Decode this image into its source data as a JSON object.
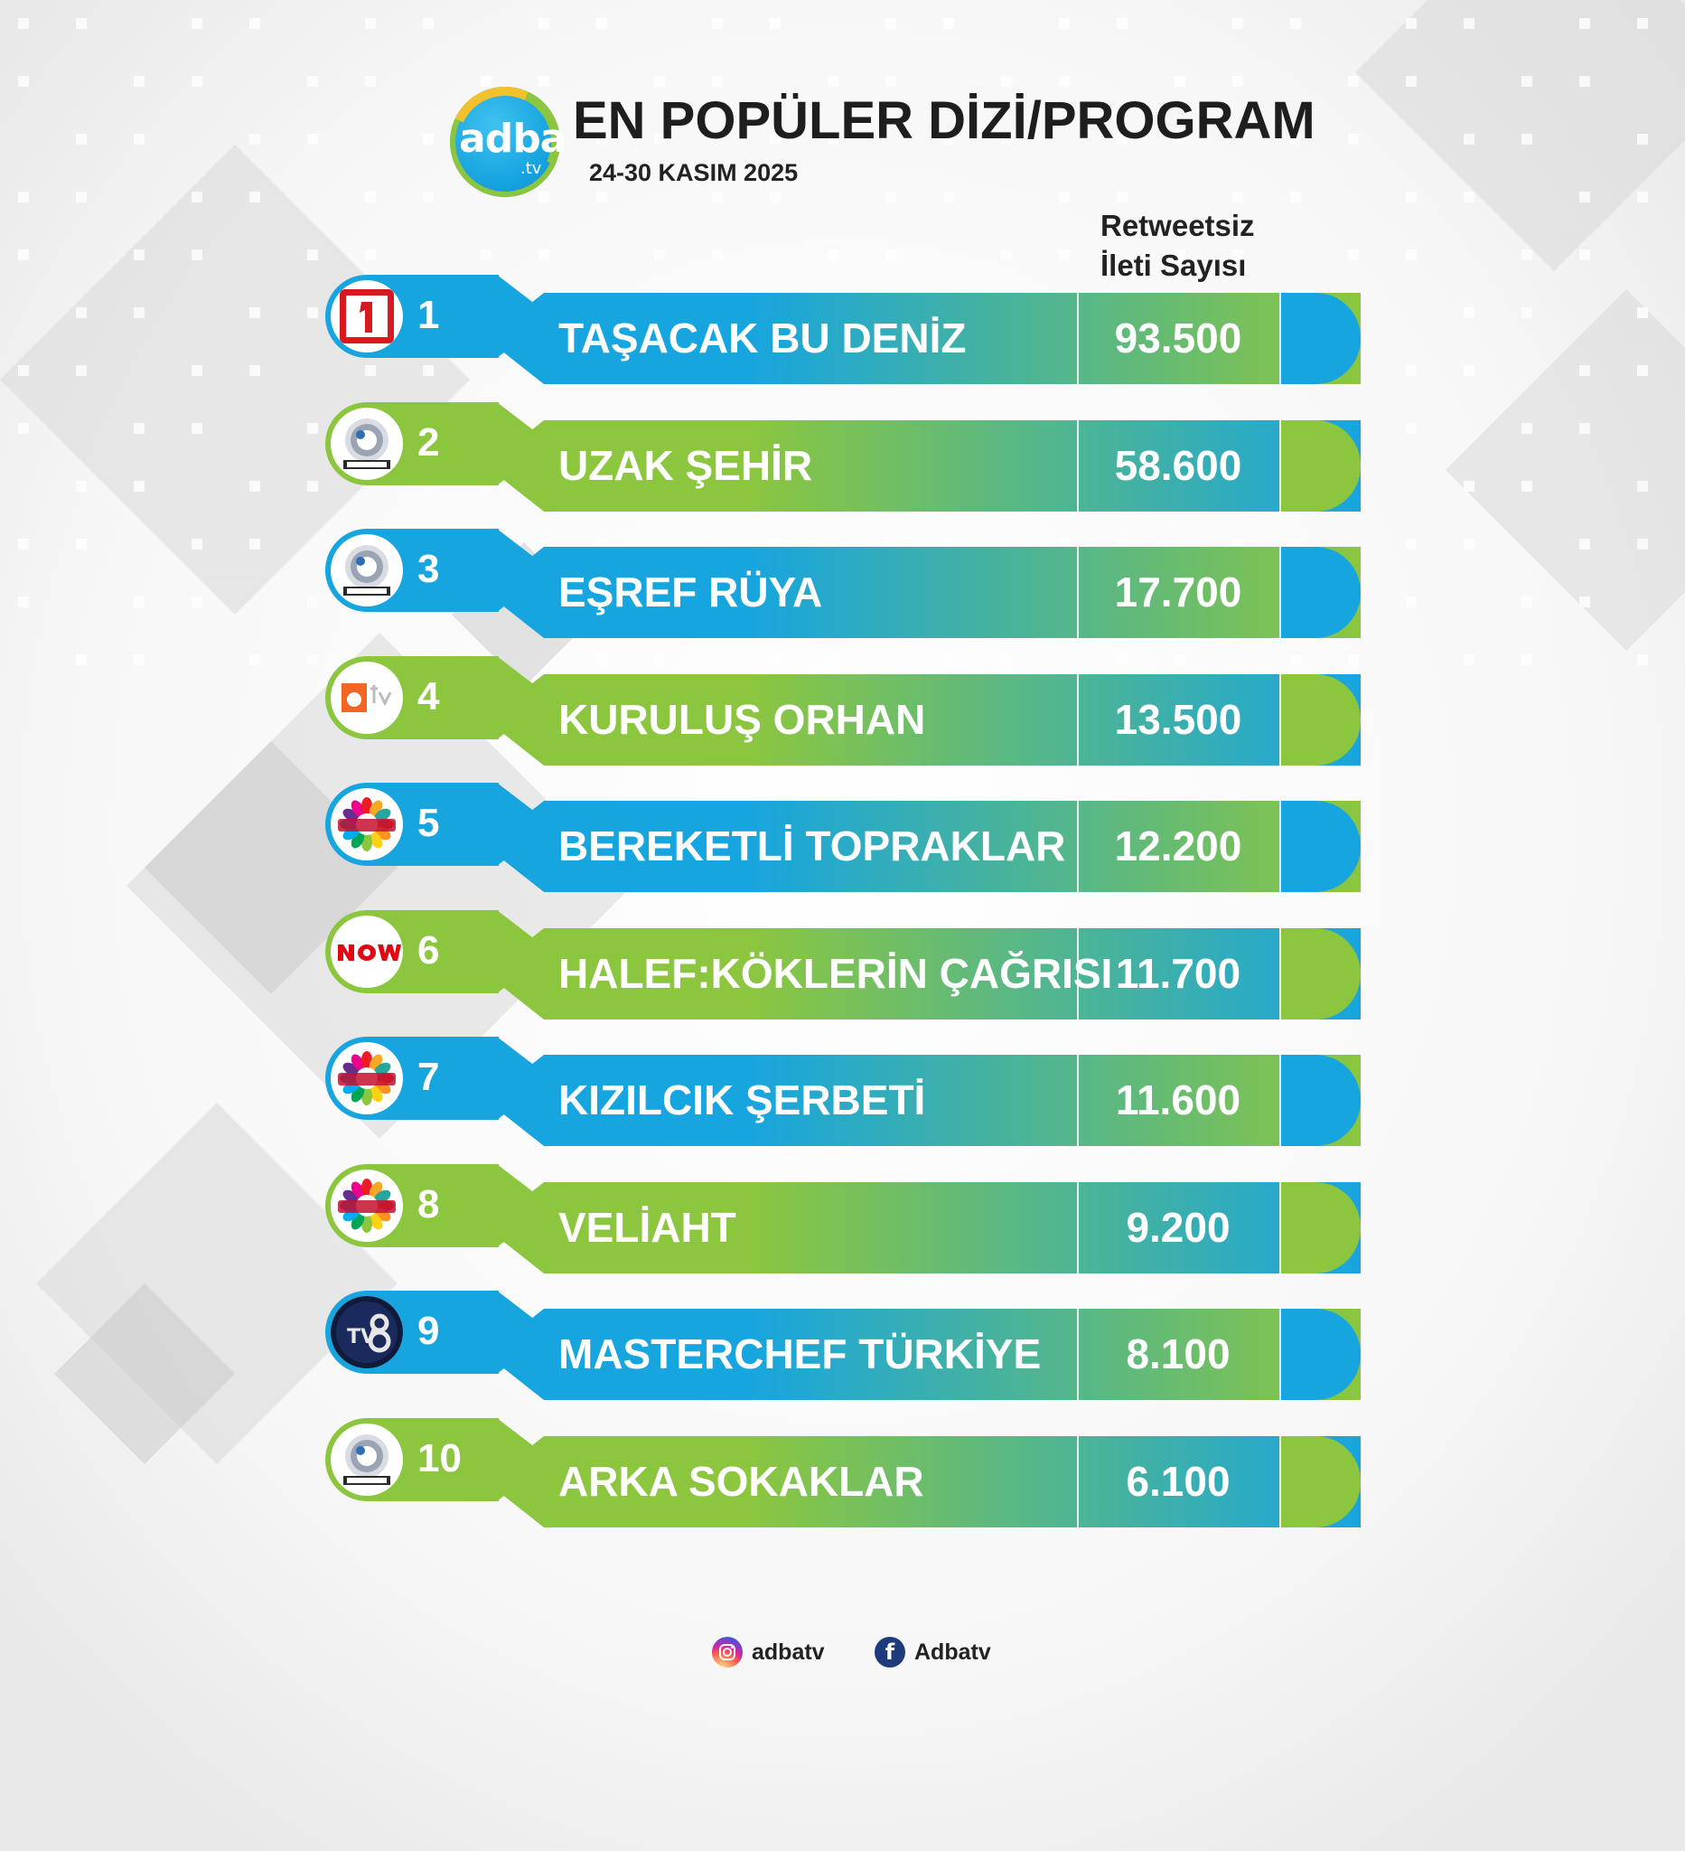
{
  "header": {
    "logo_text": "adba",
    "logo_sub": ".tv",
    "title": "EN POPÜLER DİZİ/PROGRAM",
    "date": "24-30 KASIM 2025",
    "column_header_line1": "Retweetsiz",
    "column_header_line2": "İleti Sayısı"
  },
  "colors": {
    "blue": "#17a5df",
    "green": "#8cc63f"
  },
  "rows": [
    {
      "rank": "1",
      "channel": "kanal-1-logo",
      "name": "TAŞACAK BU DENİZ",
      "value": "93.500",
      "theme": "blue"
    },
    {
      "rank": "2",
      "channel": "kanal-d-logo",
      "name": "UZAK ŞEHİR",
      "value": "58.600",
      "theme": "green"
    },
    {
      "rank": "3",
      "channel": "kanal-d-logo",
      "name": "EŞREF RÜYA",
      "value": "17.700",
      "theme": "blue"
    },
    {
      "rank": "4",
      "channel": "atv-logo",
      "name": "KURULUŞ ORHAN",
      "value": "13.500",
      "theme": "green"
    },
    {
      "rank": "5",
      "channel": "show-tv-logo",
      "name": "BEREKETLİ TOPRAKLAR",
      "value": "12.200",
      "theme": "blue"
    },
    {
      "rank": "6",
      "channel": "now-logo",
      "name": "HALEF:KÖKLERİN ÇAĞRISI",
      "value": "11.700",
      "theme": "green"
    },
    {
      "rank": "7",
      "channel": "show-tv-logo",
      "name": "KIZILCIK ŞERBETİ",
      "value": "11.600",
      "theme": "blue"
    },
    {
      "rank": "8",
      "channel": "show-tv-logo",
      "name": "VELİAHT",
      "value": "9.200",
      "theme": "green"
    },
    {
      "rank": "9",
      "channel": "tv8-logo",
      "name": "MASTERCHEF TÜRKİYE",
      "value": "8.100",
      "theme": "blue"
    },
    {
      "rank": "10",
      "channel": "kanal-d-logo",
      "name": "ARKA SOKAKLAR",
      "value": "6.100",
      "theme": "green"
    }
  ],
  "footer": {
    "instagram": "adbatv",
    "facebook": "Adbatv"
  }
}
